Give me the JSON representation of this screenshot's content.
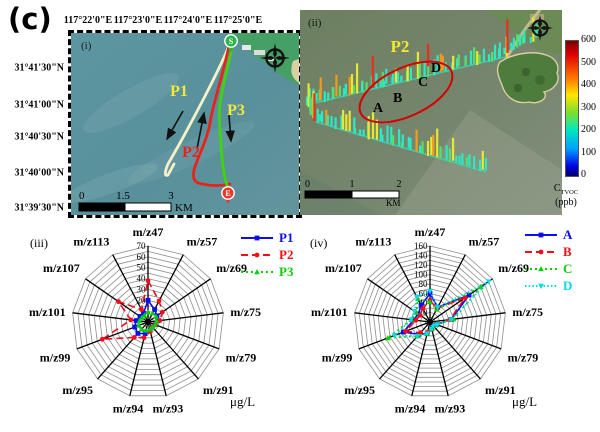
{
  "figure": {
    "label": "(c)"
  },
  "map_i": {
    "panel_label": "(i)",
    "top_axis": [
      "117°22'0\"E",
      "117°23'0\"E",
      "117°24'0\"E",
      "117°25'0\"E"
    ],
    "left_axis": [
      "31°41'30\"N",
      "31°41'00\"N",
      "31°40'30\"N",
      "31°40'00\"N",
      "31°39'30\"N"
    ],
    "path_labels": {
      "p1": "P1",
      "p2": "P2",
      "p3": "P3"
    },
    "markers": {
      "start": "S",
      "end": "E"
    },
    "scale": {
      "ticks": [
        "0",
        "1.5",
        "3"
      ],
      "unit": "KM"
    },
    "colors": {
      "p1_path": "#f6f1c8",
      "p2_path": "#e8231c",
      "p3_path": "#3fd40e",
      "p1_label": "#f2e93a",
      "p2_label": "#e8231c",
      "p3_label": "#f2e93a",
      "water": "#58909b",
      "land": "#45a065"
    }
  },
  "map_ii": {
    "panel_label": "(ii)",
    "region_label": "P2",
    "point_labels": [
      "A",
      "B",
      "C",
      "D"
    ],
    "scale": {
      "ticks": [
        "0",
        "1",
        "2"
      ],
      "unit": "KM"
    },
    "ellipse_color": "#d40000",
    "colorbar": {
      "ticks": [
        "600",
        "500",
        "400",
        "300",
        "200",
        "100",
        "0"
      ],
      "label_main": "C",
      "label_sub": "TVOC",
      "label_unit": "(ppb)"
    }
  },
  "chart_data": [
    {
      "id": "radar-iii",
      "panel_label": "(iii)",
      "type": "radar",
      "axes": [
        "m/z47",
        "m/z57",
        "m/z69",
        "m/z75",
        "m/z79",
        "m/z91",
        "m/z93",
        "m/z94",
        "m/z95",
        "m/z99",
        "m/z101",
        "m/z107",
        "m/z113"
      ],
      "rmax": 70,
      "ring_step": 5,
      "ticks": [
        20,
        30,
        40,
        50,
        60,
        70
      ],
      "unit": "μg/L",
      "legend_position": "top-right",
      "series": [
        {
          "name": "P1",
          "color": "#0d0df0",
          "line": "solid",
          "marker": "square",
          "values": [
            20,
            13,
            10,
            9,
            7,
            6,
            8,
            11,
            14,
            13,
            11,
            9,
            9
          ]
        },
        {
          "name": "P2",
          "color": "#f20d1a",
          "line": "dashed",
          "marker": "circle",
          "values": [
            38,
            22,
            16,
            11,
            7,
            6,
            9,
            15,
            19,
            45,
            16,
            33,
            13
          ]
        },
        {
          "name": "P3",
          "color": "#0acc0a",
          "line": "dashdot",
          "marker": "triangle-up",
          "values": [
            9,
            9,
            9,
            8,
            7,
            6,
            7,
            8,
            9,
            9,
            8,
            7,
            7
          ]
        }
      ]
    },
    {
      "id": "radar-iv",
      "panel_label": "(iv)",
      "type": "radar",
      "axes": [
        "m/z47",
        "m/z57",
        "m/z69",
        "m/z75",
        "m/z79",
        "m/z91",
        "m/z93",
        "m/z94",
        "m/z95",
        "m/z99",
        "m/z101",
        "m/z107",
        "m/z113"
      ],
      "rmax": 160,
      "ring_step": 10,
      "ticks": [
        20,
        40,
        60,
        80,
        100,
        120,
        140,
        160
      ],
      "unit": "μg/L",
      "legend_position": "top-right",
      "series": [
        {
          "name": "A",
          "color": "#0d0df0",
          "line": "solid",
          "marker": "square",
          "values": [
            60,
            35,
            100,
            45,
            15,
            10,
            15,
            25,
            35,
            60,
            35,
            30,
            40
          ]
        },
        {
          "name": "B",
          "color": "#f20d1a",
          "line": "dashed",
          "marker": "circle",
          "values": [
            45,
            32,
            90,
            42,
            14,
            10,
            16,
            22,
            30,
            55,
            30,
            25,
            32
          ]
        },
        {
          "name": "C",
          "color": "#0acc0a",
          "line": "dashdot",
          "marker": "triangle-up",
          "values": [
            42,
            30,
            130,
            50,
            15,
            10,
            15,
            25,
            40,
            95,
            40,
            35,
            55
          ]
        },
        {
          "name": "D",
          "color": "#00dbe8",
          "line": "dotted",
          "marker": "triangle-down",
          "values": [
            65,
            35,
            150,
            45,
            16,
            10,
            15,
            25,
            40,
            80,
            40,
            40,
            60
          ]
        }
      ]
    }
  ]
}
